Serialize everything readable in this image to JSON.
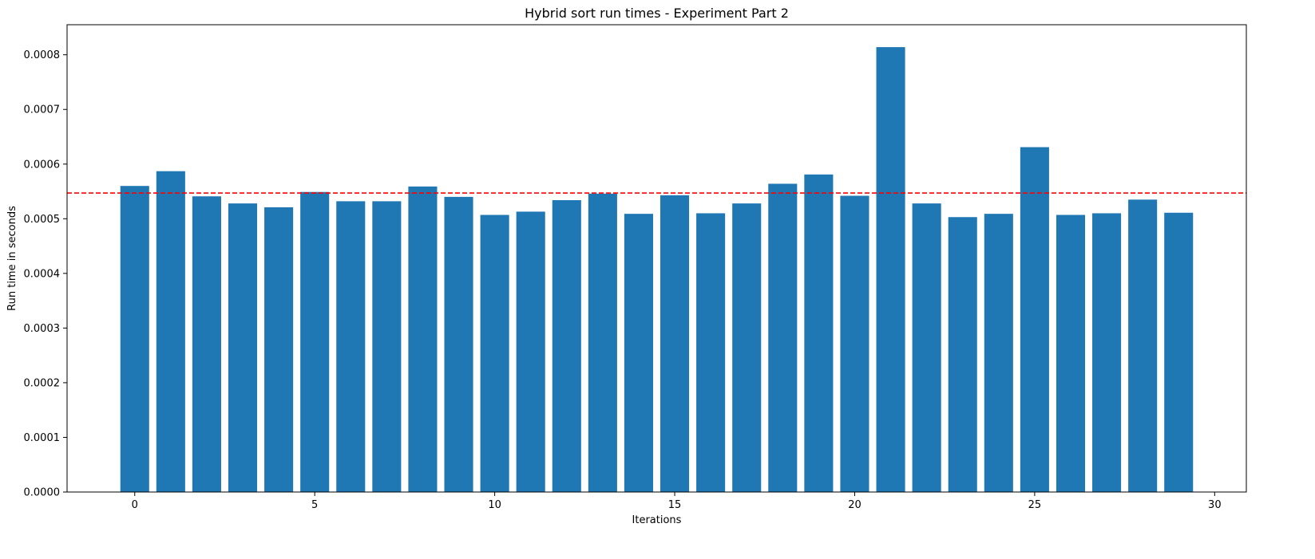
{
  "chart_data": {
    "type": "bar",
    "title": "Hybrid sort run times - Experiment Part 2",
    "xlabel": "Iterations",
    "ylabel": "Run time in seconds",
    "x": [
      0,
      1,
      2,
      3,
      4,
      5,
      6,
      7,
      8,
      9,
      10,
      11,
      12,
      13,
      14,
      15,
      16,
      17,
      18,
      19,
      20,
      21,
      22,
      23,
      24,
      25,
      26,
      27,
      28,
      29
    ],
    "values": [
      0.00056,
      0.000587,
      0.000541,
      0.000528,
      0.000521,
      0.000549,
      0.000532,
      0.000532,
      0.000559,
      0.00054,
      0.000507,
      0.000513,
      0.000534,
      0.000546,
      0.000509,
      0.000543,
      0.00051,
      0.000528,
      0.000564,
      0.000581,
      0.000542,
      0.000814,
      0.000528,
      0.000503,
      0.000509,
      0.000631,
      0.000507,
      0.00051,
      0.000535,
      0.000511
    ],
    "xlim": [
      -1.88,
      30.88
    ],
    "ylim": [
      0,
      0.000855
    ],
    "xticks": [
      0,
      5,
      10,
      15,
      20,
      25,
      30
    ],
    "xtick_labels": [
      "0",
      "5",
      "10",
      "15",
      "20",
      "25",
      "30"
    ],
    "yticks": [
      0,
      0.0001,
      0.0002,
      0.0003,
      0.0004,
      0.0005,
      0.0006,
      0.0007,
      0.0008
    ],
    "ytick_labels": [
      "0.0000",
      "0.0001",
      "0.0002",
      "0.0003",
      "0.0004",
      "0.0005",
      "0.0006",
      "0.0007",
      "0.0008"
    ],
    "bar_width_units": 0.8,
    "bar_color": "#1f77b4",
    "mean_line": {
      "value": 0.000547,
      "color": "#ff0000",
      "style": "dashed"
    },
    "grid": false
  }
}
